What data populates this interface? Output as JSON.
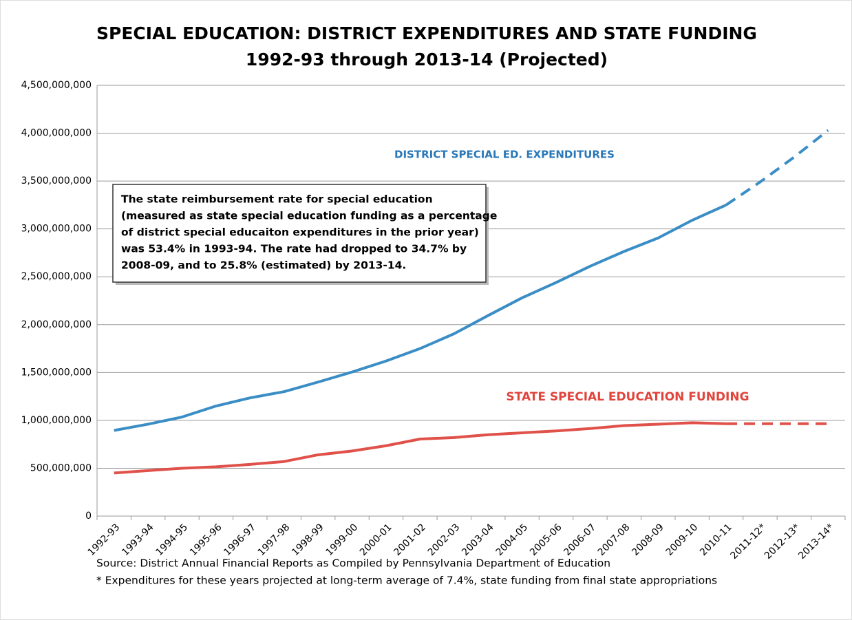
{
  "chart_data": {
    "type": "line",
    "title": [
      "SPECIAL EDUCATION: DISTRICT EXPENDITURES AND STATE FUNDING",
      "1992-93 through 2013-14 (Projected)"
    ],
    "categories": [
      "1992-93",
      "1993-94",
      "1994-95",
      "1995-96",
      "1996-97",
      "1997-98",
      "1998-99",
      "1999-00",
      "2000-01",
      "2001-02",
      "2002-03",
      "2003-04",
      "2004-05",
      "2005-06",
      "2006-07",
      "2007-08",
      "2008-09",
      "2009-10",
      "2010-11",
      "2011-12*",
      "2012-13*",
      "2013-14*"
    ],
    "line_style": [
      "solid",
      "solid",
      "solid",
      "solid",
      "solid",
      "solid",
      "solid",
      "solid",
      "solid",
      "solid",
      "solid",
      "solid",
      "solid",
      "solid",
      "solid",
      "solid",
      "solid",
      "solid",
      "solid",
      "dashed",
      "dashed",
      "dashed"
    ],
    "series": [
      {
        "color": "#3a8dc5",
        "values": [
          895000000,
          960000000,
          1035000000,
          1150000000,
          1235000000,
          1300000000,
          1400000000,
          1505000000,
          1620000000,
          1750000000,
          1905000000,
          2095000000,
          2280000000,
          2440000000,
          2610000000,
          2765000000,
          2905000000,
          3090000000,
          3250000000,
          3490000000,
          3750000000,
          4030000000
        ]
      },
      {
        "color": "#e0514a",
        "values": [
          450000000,
          475000000,
          500000000,
          515000000,
          540000000,
          570000000,
          640000000,
          680000000,
          735000000,
          805000000,
          820000000,
          850000000,
          870000000,
          890000000,
          915000000,
          945000000,
          960000000,
          975000000,
          965000000,
          965000000,
          965000000,
          965000000
        ]
      }
    ],
    "annotations": [
      {
        "text": "DISTRICT SPECIAL ED. EXPENDITURES",
        "color": "#2a78b8"
      },
      {
        "text": "STATE SPECIAL EDUCATION FUNDING",
        "color": "#e0443c"
      }
    ],
    "note_lines": [
      "The state reimbursement rate for special education",
      "(measured as state special education funding as a percentage",
      "of district special educaiton expenditures in the prior year)",
      "was 53.4% in 1993-94. The rate had dropped to 34.7% by",
      "2008-09, and to 25.8% (estimated)  by 2013-14."
    ],
    "footnotes": [
      "Source: District Annual Financial Reports as Compiled by Pennsylvania Department of Education",
      "* Expenditures for these years projected at long-term average of 7.4%, state funding from final state appropriations"
    ],
    "ylim": [
      0,
      4500000000
    ],
    "yticks": [
      {
        "value": 0,
        "label": "0"
      },
      {
        "value": 500000000,
        "label": "500,000,000"
      },
      {
        "value": 1000000000,
        "label": "1,000,000,000"
      },
      {
        "value": 1500000000,
        "label": "1,500,000,000"
      },
      {
        "value": 2000000000,
        "label": "2,000,000,000"
      },
      {
        "value": 2500000000,
        "label": "2,500,000,000"
      },
      {
        "value": 3000000000,
        "label": "3,000,000,000"
      },
      {
        "value": 3500000000,
        "label": "3,500,000,000"
      },
      {
        "value": 4000000000,
        "label": "4,000,000,000"
      },
      {
        "value": 4500000000,
        "label": "4,500,000,000"
      }
    ],
    "grid": true
  }
}
